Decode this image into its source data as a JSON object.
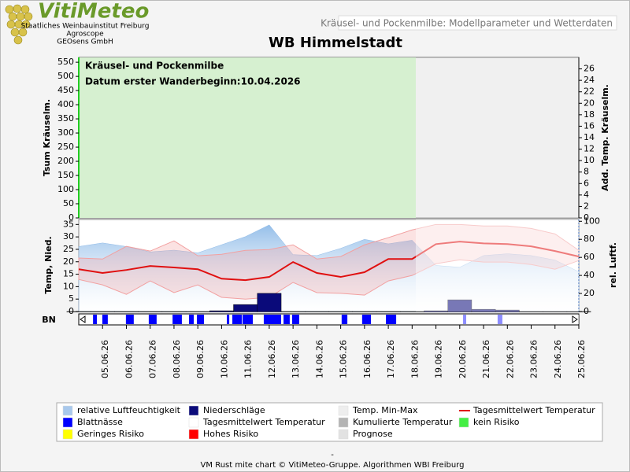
{
  "header": {
    "logo": "VitiMeteo",
    "org_lines": [
      "Staatliches Weinbauinstitut Freiburg",
      "Agroscope",
      "GEOsens GmbH"
    ],
    "tab": "Kräusel- und Pockenmilbe: Modellparameter und Wetterdaten"
  },
  "chart_data": [
    {
      "type": "empty",
      "title": "WB Himmelstadt",
      "annotations": [
        "Kräusel- und Pockenmilbe",
        "Datum  erster Wanderbeginn:10.04.2026"
      ],
      "ylabel": "Tsum Kräuselm.",
      "y2label": "Add. Temp. Kräuselm.",
      "ylim": [
        0,
        567
      ],
      "yticks": [
        0,
        50,
        100,
        150,
        200,
        250,
        300,
        350,
        400,
        450,
        500,
        550
      ],
      "y2lim": [
        0,
        28
      ],
      "y2ticks": [
        0,
        2,
        4,
        6,
        8,
        10,
        12,
        14,
        16,
        18,
        20,
        22,
        24,
        26
      ]
    },
    {
      "type": "combo",
      "ylabel": "Temp, Nied.",
      "y2label": "rel. Luftf.",
      "categories": [
        null,
        "05.06.26",
        "06.06.26",
        "07.06.26",
        "08.06.26",
        "09.06.26",
        "10.06.26",
        "11.06.26",
        "12.06.26",
        "13.06.26",
        "14.06.26",
        "15.06.26",
        "16.06.26",
        "17.06.26",
        "18.06.26",
        "19.06.26",
        "20.06.26",
        "21.06.26",
        "22.06.26",
        "23.06.26",
        "24.06.26",
        "25.06.26"
      ],
      "ylim": [
        0,
        37
      ],
      "yticks": [
        0,
        5,
        10,
        15,
        20,
        25,
        30,
        35
      ],
      "y2lim": [
        0,
        102
      ],
      "y2ticks": [
        0,
        20,
        40,
        60,
        80,
        100
      ],
      "series": [
        {
          "name": "relative Luftfeuchtigkeit",
          "kind": "area",
          "axis": "y2",
          "color": "#8fbbe8",
          "values": [
            72,
            76,
            72,
            66,
            68,
            65,
            74,
            83,
            96,
            63,
            62,
            70,
            80,
            75,
            79,
            51,
            49,
            62,
            64,
            62,
            57,
            44
          ]
        },
        {
          "name": "Temp. Min-Max",
          "kind": "band",
          "color": "#f2a0a0",
          "high": [
            21.5,
            21.1,
            26.2,
            24.3,
            28.4,
            22.4,
            23.0,
            24.6,
            24.9,
            26.8,
            21.1,
            22.1,
            26.8,
            29.7,
            32.8,
            35.0,
            35.0,
            34.4,
            34.4,
            33.4,
            31.2,
            24.6
          ],
          "low": [
            12.9,
            10.7,
            6.9,
            12.3,
            7.6,
            10.7,
            5.7,
            5.0,
            5.7,
            11.7,
            7.6,
            7.3,
            6.6,
            12.3,
            14.5,
            19.2,
            20.8,
            19.9,
            19.9,
            18.9,
            17.0,
            20.5
          ]
        },
        {
          "name": "Niederschläge",
          "kind": "bar",
          "color": "#0a0a7a",
          "values": [
            0,
            0,
            0,
            0,
            0,
            0,
            0.3,
            2.8,
            7.3,
            0,
            0,
            0,
            0,
            0,
            0,
            0.3,
            4.7,
            0.9,
            0.6,
            0,
            0,
            0
          ]
        },
        {
          "name": "Tagesmittelwert Temperatur",
          "kind": "line",
          "color": "#e01010",
          "values": [
            17.0,
            15.5,
            16.7,
            18.3,
            17.7,
            17.0,
            13.2,
            12.6,
            13.9,
            19.9,
            15.5,
            13.9,
            15.8,
            21.1,
            21.1,
            27.1,
            28.1,
            27.4,
            27.1,
            26.2,
            24.3,
            22.1
          ]
        }
      ]
    },
    {
      "type": "timeline",
      "ylabel": "BN",
      "series": [
        {
          "name": "Blattnässe",
          "color": "#0000ff",
          "intervals": [
            [
              0.6,
              0.76
            ],
            [
              0.99,
              1.22
            ],
            [
              1.98,
              2.31
            ],
            [
              2.94,
              3.27
            ],
            [
              3.94,
              4.33
            ],
            [
              4.63,
              4.83
            ],
            [
              4.96,
              5.26
            ],
            [
              6.22,
              6.32
            ],
            [
              6.45,
              6.85
            ],
            [
              6.88,
              7.31
            ],
            [
              7.77,
              8.5
            ],
            [
              8.6,
              8.86
            ],
            [
              8.96,
              9.26
            ],
            [
              11.04,
              11.28
            ],
            [
              11.9,
              12.27
            ],
            [
              12.9,
              13.33
            ],
            [
              16.14,
              16.27
            ],
            [
              17.59,
              17.79
            ]
          ]
        }
      ]
    }
  ],
  "legend": [
    {
      "name": "relative Luftfeuchtigkeit",
      "color": "#a8c8ec",
      "style": "box"
    },
    {
      "name": "Niederschläge",
      "color": "#0a0a7a",
      "style": "box"
    },
    {
      "name": "Temp. Min-Max",
      "color": "#eeeeee",
      "style": "box"
    },
    {
      "name": "Tagesmittelwert Temperatur",
      "color": "#e01010",
      "style": "line"
    },
    {
      "name": "Blattnässe",
      "color": "#0000ff",
      "style": "box"
    },
    {
      "name": "Tagesmittelwert Temperatur",
      "color": "#ffffff",
      "style": "box"
    },
    {
      "name": "Kumulierte Temperatur",
      "color": "#b4b4b4",
      "style": "box"
    },
    {
      "name": "kein Risiko",
      "color": "#44ee44",
      "style": "box"
    },
    {
      "name": "Geringes Risiko",
      "color": "#ffff00",
      "style": "box"
    },
    {
      "name": "Hohes Risiko",
      "color": "#ff0000",
      "style": "box"
    },
    {
      "name": "Prognose",
      "color": "#e2e2e2",
      "style": "box"
    }
  ],
  "footer": {
    "dash": "-",
    "credit": "VM Rust mite chart © VitiMeteo-Gruppe. Algorithmen WBI Freiburg"
  }
}
